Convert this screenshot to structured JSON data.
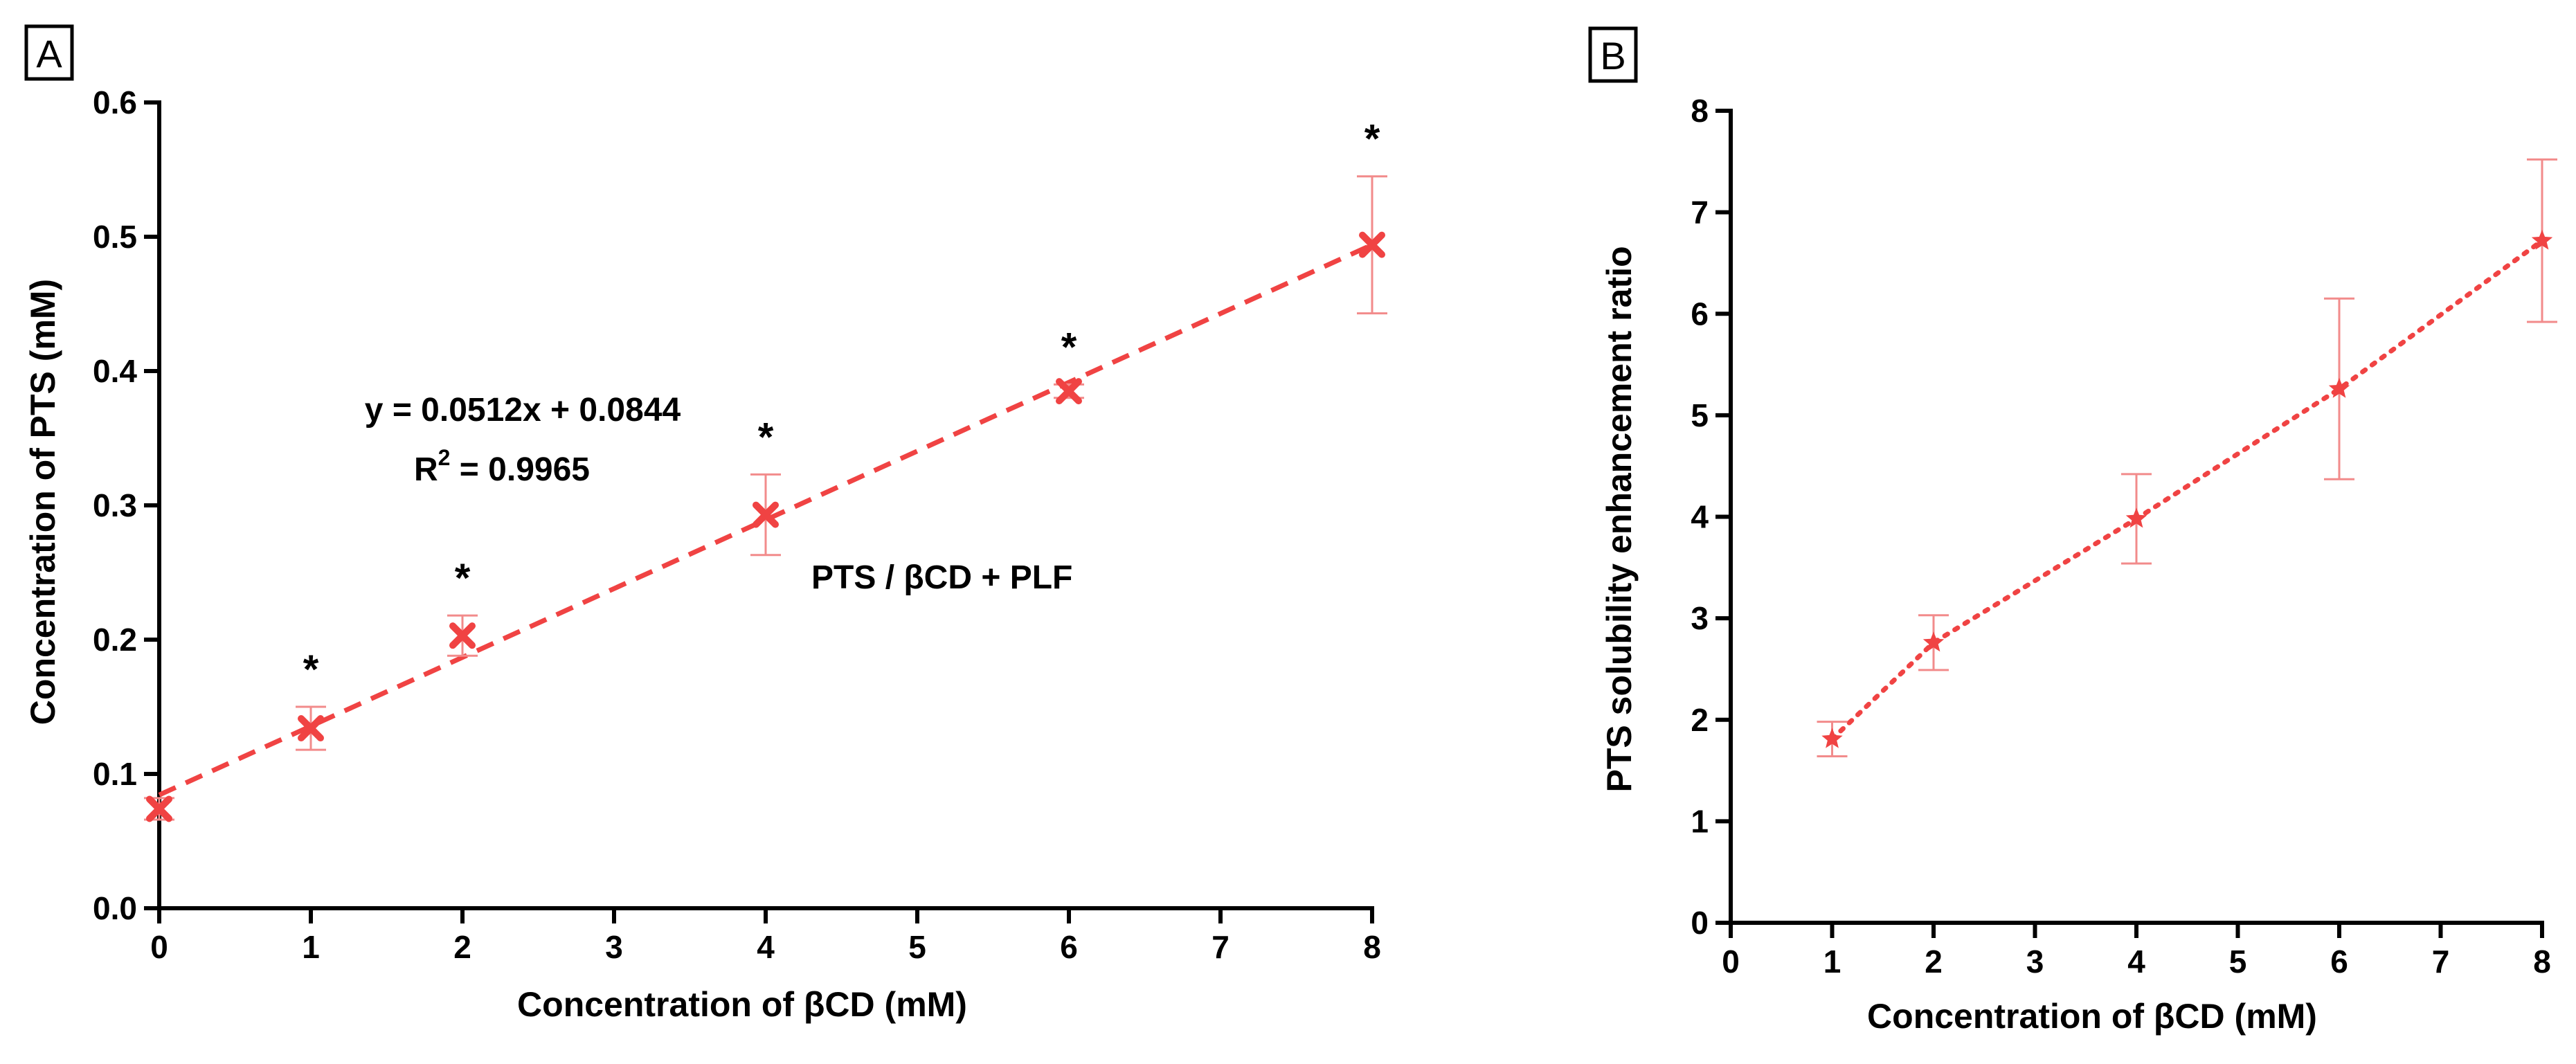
{
  "colors": {
    "series": "#f04343",
    "errorbar": "#f28b8b",
    "axis": "#000000"
  },
  "chart_data": [
    {
      "panel": "A",
      "type": "scatter",
      "title": "",
      "xlabel": "Concentration of βCD (mM)",
      "ylabel": "Concentration of PTS (mM)",
      "xlim": [
        0,
        8
      ],
      "ylim": [
        0,
        0.6
      ],
      "xticks": [
        "0",
        "1",
        "2",
        "3",
        "4",
        "5",
        "6",
        "7",
        "8"
      ],
      "yticks": [
        "0.0",
        "0.1",
        "0.2",
        "0.3",
        "0.4",
        "0.5",
        "0.6"
      ],
      "grid": false,
      "series": [
        {
          "name": "PTS / βCD + PLF",
          "marker": "x",
          "x": [
            0,
            1,
            2,
            4,
            6,
            8
          ],
          "y": [
            0.074,
            0.134,
            0.203,
            0.293,
            0.385,
            0.494
          ],
          "yerr": [
            0.008,
            0.016,
            0.015,
            0.03,
            0.005,
            0.051
          ],
          "significance": [
            "",
            "*",
            "*",
            "*",
            "*",
            "*"
          ]
        }
      ],
      "fit": {
        "style": "dashed",
        "slope": 0.0512,
        "intercept": 0.0844,
        "x_range": [
          0,
          8
        ]
      },
      "annotations": {
        "equation": "y = 0.0512x + 0.0844",
        "r2_label": "R",
        "r2_sup": "2",
        "r2_value": " = 0.9965",
        "series_label": "PTS / βCD + PLF",
        "significance_symbol": "*"
      }
    },
    {
      "panel": "B",
      "type": "scatter",
      "title": "",
      "xlabel": "Concentration of βCD (mM)",
      "ylabel": "PTS solubility enhancement ratio",
      "xlim": [
        0,
        8
      ],
      "ylim": [
        0,
        8
      ],
      "xticks": [
        "0",
        "1",
        "2",
        "3",
        "4",
        "5",
        "6",
        "7",
        "8"
      ],
      "yticks": [
        "0",
        "1",
        "2",
        "3",
        "4",
        "5",
        "6",
        "7",
        "8"
      ],
      "grid": false,
      "series": [
        {
          "name": "PTS solubility enhancement ratio",
          "marker": "star",
          "x": [
            1,
            2,
            4,
            6,
            8
          ],
          "y": [
            1.81,
            2.76,
            3.98,
            5.26,
            6.72
          ],
          "yerr": [
            0.17,
            0.27,
            0.44,
            0.89,
            0.8
          ]
        }
      ],
      "fit": {
        "style": "dotted",
        "connect_points": true
      }
    }
  ]
}
